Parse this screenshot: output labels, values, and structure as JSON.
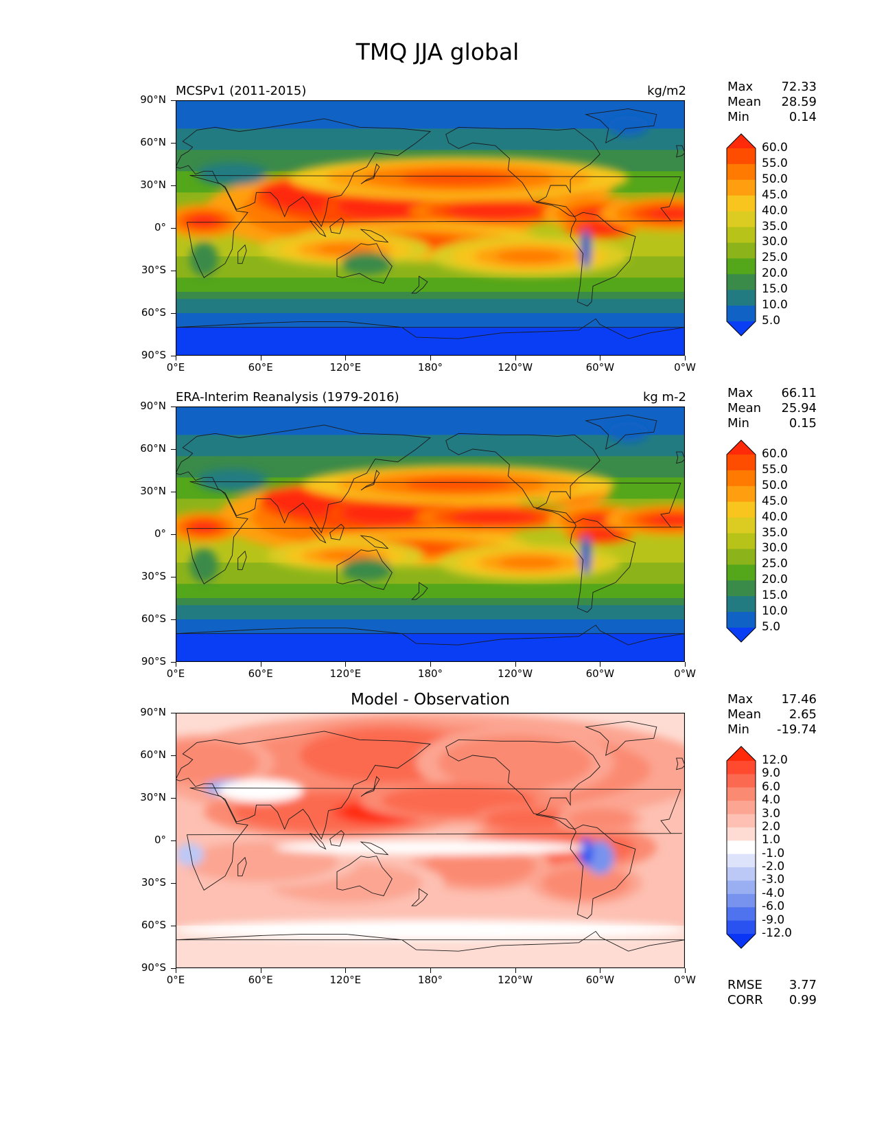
{
  "title": "TMQ JJA global",
  "axes": {
    "yticks": [
      "90°N",
      "60°N",
      "30°N",
      "0°",
      "30°S",
      "60°S",
      "90°S"
    ],
    "xticks": [
      "0°E",
      "60°E",
      "120°E",
      "180°",
      "120°W",
      "60°W",
      "0°W"
    ]
  },
  "panels": [
    {
      "id": "model",
      "left_title": "MCSPv1 (2011-2015)",
      "right_title": "kg/m2",
      "center_title": "",
      "stats": {
        "max_label": "Max",
        "max": "72.33",
        "mean_label": "Mean",
        "mean": "28.59",
        "min_label": "Min",
        "min": "0.14"
      },
      "colorbar": {
        "levels": [
          "60.0",
          "55.0",
          "50.0",
          "45.0",
          "40.0",
          "35.0",
          "30.0",
          "25.0",
          "20.0",
          "15.0",
          "10.0",
          "5.0"
        ],
        "colors": [
          "#ff2a0a",
          "#ff4d00",
          "#ff7a00",
          "#ff9f10",
          "#f8c41e",
          "#dccc22",
          "#b8c31a",
          "#8cb41a",
          "#54a61a",
          "#3a8a4a",
          "#237b82",
          "#1062c4",
          "#0a3ef5"
        ]
      }
    },
    {
      "id": "obs",
      "left_title": "ERA-Interim Reanalysis (1979-2016)",
      "right_title": "kg m-2",
      "center_title": "",
      "stats": {
        "max_label": "Max",
        "max": "66.11",
        "mean_label": "Mean",
        "mean": "25.94",
        "min_label": "Min",
        "min": "0.15"
      },
      "colorbar": {
        "levels": [
          "60.0",
          "55.0",
          "50.0",
          "45.0",
          "40.0",
          "35.0",
          "30.0",
          "25.0",
          "20.0",
          "15.0",
          "10.0",
          "5.0"
        ],
        "colors": [
          "#ff2a0a",
          "#ff4d00",
          "#ff7a00",
          "#ff9f10",
          "#f8c41e",
          "#dccc22",
          "#b8c31a",
          "#8cb41a",
          "#54a61a",
          "#3a8a4a",
          "#237b82",
          "#1062c4",
          "#0a3ef5"
        ]
      }
    },
    {
      "id": "diff",
      "left_title": "",
      "right_title": "",
      "center_title": "Model - Observation",
      "stats": {
        "max_label": "Max",
        "max": "17.46",
        "mean_label": "Mean",
        "mean": "2.65",
        "min_label": "Min",
        "min": "-19.74"
      },
      "colorbar": {
        "levels": [
          "12.0",
          "9.0",
          "6.0",
          "4.0",
          "3.0",
          "2.0",
          "1.0",
          "-1.0",
          "-2.0",
          "-3.0",
          "-4.0",
          "-6.0",
          "-9.0",
          "-12.0"
        ],
        "colors": [
          "#ff2a0a",
          "#ff4a30",
          "#fb6a50",
          "#fb8a72",
          "#fca592",
          "#fdc0b2",
          "#fedcd3",
          "#ffffff",
          "#dde3fb",
          "#bcc8f6",
          "#9aaef2",
          "#7893ee",
          "#4f73ee",
          "#2a52f0",
          "#0a35f5"
        ]
      },
      "metrics": {
        "rmse_label": "RMSE",
        "rmse": "3.77",
        "corr_label": "CORR",
        "corr": "0.99"
      }
    }
  ],
  "chart_data": [
    {
      "type": "heatmap",
      "title": "MCSPv1 (2011-2015)",
      "units": "kg/m2",
      "xlim": [
        0,
        360
      ],
      "ylim": [
        -90,
        90
      ],
      "levels": [
        5,
        10,
        15,
        20,
        25,
        30,
        35,
        40,
        45,
        50,
        55,
        60
      ],
      "max": 72.33,
      "mean": 28.59,
      "min": 0.14
    },
    {
      "type": "heatmap",
      "title": "ERA-Interim Reanalysis (1979-2016)",
      "units": "kg m-2",
      "xlim": [
        0,
        360
      ],
      "ylim": [
        -90,
        90
      ],
      "levels": [
        5,
        10,
        15,
        20,
        25,
        30,
        35,
        40,
        45,
        50,
        55,
        60
      ],
      "max": 66.11,
      "mean": 25.94,
      "min": 0.15
    },
    {
      "type": "heatmap",
      "title": "Model - Observation",
      "xlim": [
        0,
        360
      ],
      "ylim": [
        -90,
        90
      ],
      "levels": [
        -12,
        -9,
        -6,
        -4,
        -3,
        -2,
        -1,
        1,
        2,
        3,
        4,
        6,
        9,
        12
      ],
      "max": 17.46,
      "mean": 2.65,
      "min": -19.74,
      "rmse": 3.77,
      "corr": 0.99
    }
  ]
}
